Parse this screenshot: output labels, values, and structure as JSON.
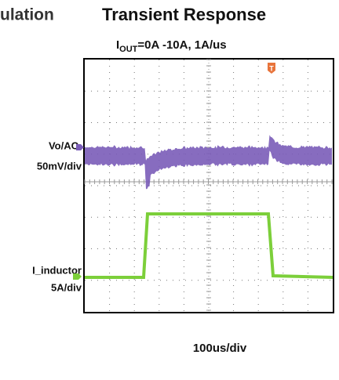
{
  "header": {
    "cut_title": "ulation",
    "title": "Transient Response",
    "subtitle": {
      "main": "I",
      "sub": "OUT",
      "rest": "=0A -10A, 1A/us"
    }
  },
  "scope": {
    "trigger_marker": "T",
    "channels": [
      {
        "name": "Vo/AC",
        "scale": "50mV/div",
        "color": "#7a5cb8"
      },
      {
        "name": "I_inductor",
        "scale": "5A/div",
        "color": "#7ccf3a"
      }
    ],
    "timebase": "100us/div"
  }
}
